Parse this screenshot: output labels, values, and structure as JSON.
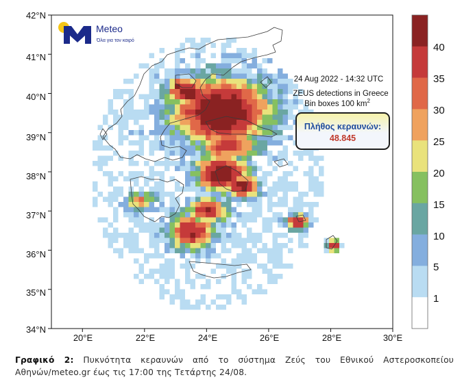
{
  "map": {
    "lat_labels": [
      "42°N",
      "41°N",
      "40°N",
      "39°N",
      "38°N",
      "37°N",
      "36°N",
      "35°N",
      "34°N"
    ],
    "lon_labels": [
      "20°E",
      "22°E",
      "24°E",
      "26°E",
      "28°E",
      "30°E"
    ],
    "lat_range": [
      34,
      42
    ],
    "lon_range": [
      19,
      30
    ],
    "annotation_line1": "24  Aug 2022 - 14:32 UTC",
    "annotation_line2": "ZEUS detections in Greece",
    "annotation_line3": "Bin boxes 100 km",
    "annotation_superscript": "2",
    "counter_label": "Πλήθος κεραυνών:",
    "counter_value": "48.845",
    "logo_name": "Meteo",
    "logo_tagline": "Όλα για τον καιρό",
    "logo_color": "#1b2a8a",
    "logo_sun_color": "#f5c518",
    "counter_border_color": "#1d1d1d",
    "counter_fill_top": "#f6f2a8",
    "counter_fill_bottom": "#f3f6fc",
    "counter_value_color": "#c0392b",
    "counter_label_color": "#1d4a9c"
  },
  "colorbar": {
    "tick_labels": [
      "40",
      "35",
      "30",
      "25",
      "20",
      "15",
      "10",
      "5",
      "1"
    ],
    "colors": [
      "#8a2222",
      "#c53a3a",
      "#e06848",
      "#efa25e",
      "#e9e27c",
      "#86c060",
      "#6aa6a2",
      "#84aede",
      "#b9dcf2",
      "#ffffff"
    ]
  },
  "caption": {
    "label": "Γραφικό 2:",
    "text": " Πυκνότητα κεραυνών από το σύστημα Ζεύς του Εθνικού Αστεροσκοπείου Αθηνών/meteo.gr έως τις 17:00 της Τετάρτης 24/08."
  }
}
